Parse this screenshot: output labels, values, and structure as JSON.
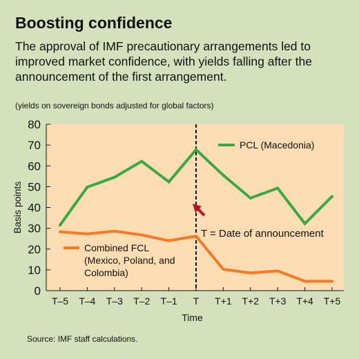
{
  "title": "Boosting confidence",
  "subtitle": "The approval of IMF precautionary arrangements led to improved market confidence, with yields falling after the announcement of the first arrangement.",
  "note": "(yields on sovereign bonds adjusted for global factors)",
  "source": "Source: IMF staff calculations.",
  "colors": {
    "background": "#d5e1bd",
    "plot_area": "#fbdcb3",
    "pcl": "#3aa843",
    "fcl": "#f47b23",
    "arrow": "#b5161e"
  },
  "annotation": "T = Date of announcement",
  "chart_data": {
    "type": "line",
    "x": [
      "T–5",
      "T–4",
      "T–3",
      "T–2",
      "T–1",
      "T",
      "T+1",
      "T+2",
      "T+3",
      "T+4",
      "T+5"
    ],
    "series": [
      {
        "name": "PCL (Macedonia)",
        "values": [
          31.5,
          49.8,
          54.5,
          62.2,
          52.3,
          67.8,
          55.5,
          44.5,
          49.3,
          32.2,
          45.3
        ]
      },
      {
        "name": "Combined FCL\n(Mexico, Poland, and\nColombia)",
        "values": [
          28.3,
          27.3,
          28.6,
          26.8,
          24.0,
          26.2,
          10.3,
          8.5,
          9.5,
          4.5,
          4.5
        ]
      }
    ],
    "xlabel": "Time",
    "ylabel": "Basis points",
    "ylim": [
      0,
      80
    ],
    "yticks": [
      0,
      10,
      20,
      30,
      40,
      50,
      60,
      70,
      80
    ],
    "vertical_marker": "T",
    "grid": false,
    "legend": "inline labels"
  }
}
